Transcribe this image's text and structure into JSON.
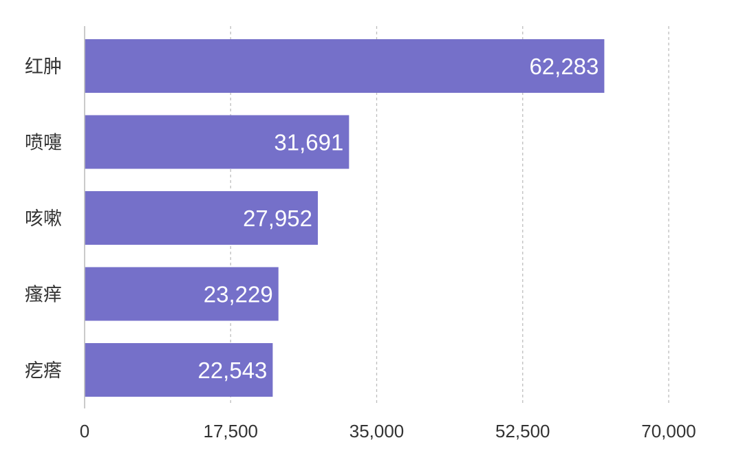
{
  "chart_data": {
    "type": "bar",
    "orientation": "horizontal",
    "categories": [
      "红肿",
      "喷嚏",
      "咳嗽",
      "瘙痒",
      "疙瘩"
    ],
    "values": [
      62283,
      31691,
      27952,
      23229,
      22543
    ],
    "data_labels": [
      "62,283",
      "31,691",
      "27,952",
      "23,229",
      "22,543"
    ],
    "xticks": [
      0,
      17500,
      35000,
      52500,
      70000
    ],
    "xtick_labels": [
      "0",
      "17,500",
      "35,000",
      "52,500",
      "70,000"
    ],
    "xlim": [
      0,
      70000
    ],
    "title": "",
    "xlabel": "",
    "ylabel": "",
    "grid": "vertical dashed",
    "legend": "none",
    "colors": {
      "bar": "#7570c9",
      "grid": "#bdbdbd",
      "axis": "#bdbdbd",
      "text": "#333333",
      "data_label": "#ffffff"
    }
  }
}
